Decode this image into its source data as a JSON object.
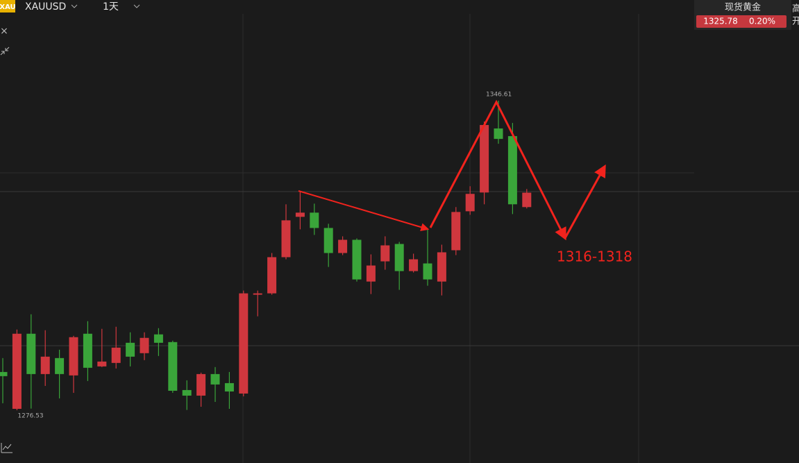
{
  "header": {
    "logo": "XAU",
    "symbol": "XAUUSD",
    "period": "1天"
  },
  "quote": {
    "name": "现货黄金",
    "price": "1325.78",
    "change": "0.20%",
    "side_labels": [
      "高",
      "开"
    ]
  },
  "annotation": "1316-1318",
  "chart_data": {
    "type": "candlestick",
    "up_color": "#d0373e",
    "down_color": "#3aa53a",
    "high_label": 1346.61,
    "low_label": 1276.53,
    "open": [
      1285.19,
      1276.85,
      1293.85,
      1284.72,
      1288.34,
      1284.41,
      1293.85,
      1286.45,
      1287.24,
      1291.8,
      1289.45,
      1293.7,
      1291.96,
      1281.1,
      1279.84,
      1284.72,
      1282.67,
      1280.31,
      1302.68,
      1302.99,
      1311.18,
      1320.31,
      1321.26,
      1317.79,
      1312.12,
      1315.11,
      1305.66,
      1310.23,
      1314.17,
      1308.03,
      1309.76,
      1305.66,
      1312.75,
      1321.57,
      1325.82,
      1340.31,
      1338.58,
      1322.52
    ],
    "high": [
      1288.34,
      1294.8,
      1298.26,
      1294.64,
      1290.23,
      1293.38,
      1296.69,
      1294.96,
      1295.43,
      1294.17,
      1294.17,
      1295.11,
      1292.28,
      1283.3,
      1285.04,
      1286.3,
      1285.19,
      1303.62,
      1303.62,
      1312.12,
      1323.15,
      1326.14,
      1323.3,
      1318.74,
      1315.9,
      1315.43,
      1311.81,
      1315.9,
      1314.64,
      1311.97,
      1317.48,
      1314.01,
      1322.52,
      1327.24,
      1341.89,
      1346.61,
      1341.57,
      1326.61
    ],
    "low": [
      1278.11,
      1276.53,
      1276.9,
      1282.04,
      1279.21,
      1280.47,
      1283.15,
      1286.3,
      1285.98,
      1286.45,
      1287.87,
      1288.81,
      1280.47,
      1276.6,
      1277.32,
      1278.42,
      1276.85,
      1279.68,
      1297.79,
      1302.68,
      1310.7,
      1317.48,
      1316.22,
      1308.97,
      1311.65,
      1305.66,
      1302.83,
      1308.34,
      1303.78,
      1307.71,
      1304.72,
      1302.52,
      1311.65,
      1320.78,
      1323.15,
      1336.85,
      1320.94,
      1322.2
    ],
    "close": [
      1284.25,
      1293.85,
      1284.72,
      1288.66,
      1284.72,
      1293.07,
      1286.14,
      1287.55,
      1290.7,
      1288.66,
      1292.91,
      1291.8,
      1280.94,
      1279.84,
      1284.72,
      1282.36,
      1280.78,
      1302.99,
      1302.99,
      1311.18,
      1319.52,
      1321.26,
      1317.79,
      1312.12,
      1315.11,
      1306.14,
      1309.29,
      1313.85,
      1308.03,
      1310.7,
      1306.14,
      1312.28,
      1321.41,
      1325.51,
      1341.1,
      1337.95,
      1323.15,
      1325.78
    ]
  }
}
